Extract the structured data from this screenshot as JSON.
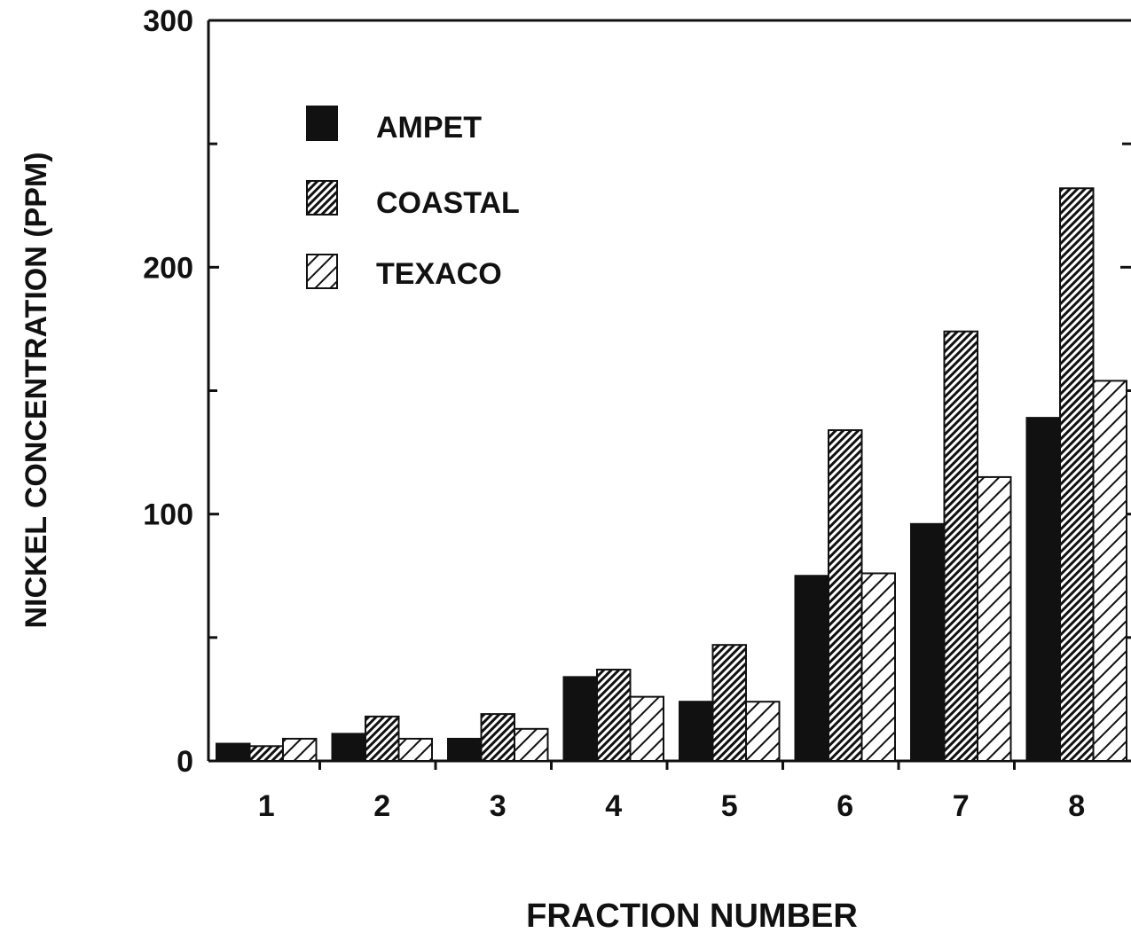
{
  "chart_data": {
    "type": "bar",
    "xlabel": "FRACTION NUMBER",
    "ylabel": "NICKEL CONCENTRATION (PPM)",
    "categories": [
      "1",
      "2",
      "3",
      "4",
      "5",
      "6",
      "7",
      "8"
    ],
    "ylim": [
      0,
      300
    ],
    "yticks": [
      0,
      100,
      200,
      300
    ],
    "y_minor_ticks": [
      50,
      150,
      250
    ],
    "grid": false,
    "legend_position": "top-left",
    "series": [
      {
        "name": "AMPET",
        "pattern": "solid-black",
        "values": [
          7,
          11,
          9,
          34,
          24,
          75,
          96,
          139
        ]
      },
      {
        "name": "COASTAL",
        "pattern": "dense-hatch",
        "values": [
          6,
          18,
          19,
          37,
          47,
          134,
          174,
          232
        ]
      },
      {
        "name": "TEXACO",
        "pattern": "sparse-hatch",
        "values": [
          9,
          9,
          13,
          26,
          24,
          76,
          115,
          154
        ]
      }
    ]
  }
}
